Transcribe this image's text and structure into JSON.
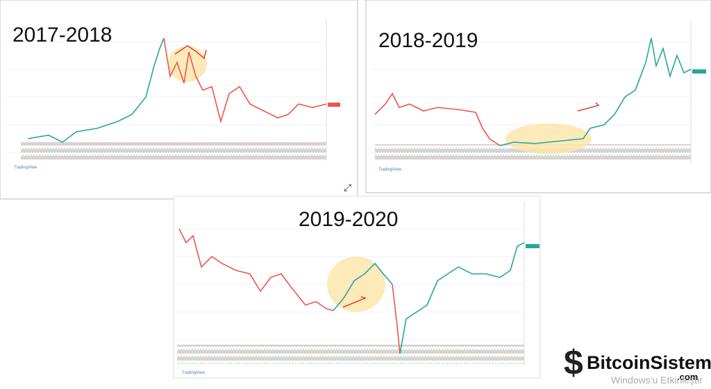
{
  "panels": [
    {
      "label": "2017-2018",
      "footer": "TradingView"
    },
    {
      "label": "2018-2019",
      "footer": "TradingView"
    },
    {
      "label": "2019-2020",
      "footer": "TradingView"
    }
  ],
  "logo": {
    "name": "BitcoinSistemi",
    "suffix": ".com"
  },
  "watermark": "Windows'u Etkinleştir"
}
